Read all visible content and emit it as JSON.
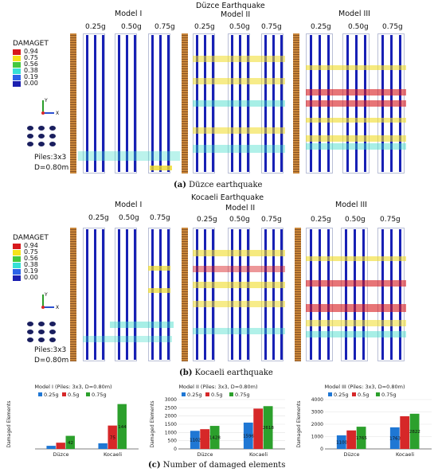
{
  "figA": {
    "title": "Düzce Earthquake",
    "caption_label": "(a)",
    "caption_text": " Düzce earthquake",
    "models": [
      "Model I",
      "Model II",
      "Model III"
    ],
    "pga": [
      "0.25g",
      "0.50g",
      "0.75g"
    ]
  },
  "figB": {
    "title": "Kocaeli Earthquake",
    "caption_label": "(b)",
    "caption_text": " Kocaeli earthquake",
    "models": [
      "Model I",
      "Model II",
      "Model III"
    ],
    "pga": [
      "0.25g",
      "0.50g",
      "0.75g"
    ]
  },
  "legend": {
    "title": "DAMAGET",
    "levels": [
      {
        "value": "0.94",
        "color": "#d7191c"
      },
      {
        "value": "0.75",
        "color": "#f5e31a"
      },
      {
        "value": "0.56",
        "color": "#43c93f"
      },
      {
        "value": "0.38",
        "color": "#36e0d6"
      },
      {
        "value": "0.19",
        "color": "#2c63e8"
      },
      {
        "value": "0.00",
        "color": "#1b1fb0"
      }
    ],
    "piles_label": "Piles:3x3",
    "diameter_label": "D=0.80m"
  },
  "figC": {
    "caption_label": "(c)",
    "caption_text": " Number of damaged elements"
  },
  "chart_data": [
    {
      "type": "bar",
      "title": "Model I (Piles: 3x3, D=0.80m)",
      "ylabel": "Damaged Elements",
      "categories": [
        "Düzce",
        "Kocaeli"
      ],
      "series": [
        {
          "name": "0.25g",
          "color": "#1f77d4",
          "values": [
            10,
            18
          ]
        },
        {
          "name": "0.5g",
          "color": "#d62728",
          "values": [
            20,
            75
          ]
        },
        {
          "name": "0.75g",
          "color": "#2ca02c",
          "values": [
            42,
            144
          ]
        }
      ],
      "labels": [
        [
          "",
          "",
          "42"
        ],
        [
          "",
          "75",
          "144"
        ]
      ],
      "yticks": []
    },
    {
      "type": "bar",
      "title": "Model II (Piles: 3x3, D=0.80m)",
      "ylabel": "Damaged Elements",
      "categories": [
        "Düzce",
        "Kocaeli"
      ],
      "series": [
        {
          "name": "0.25g",
          "color": "#1f77d4",
          "values": [
            1100,
            1600
          ]
        },
        {
          "name": "0.5g",
          "color": "#d62728",
          "values": [
            1200,
            2450
          ]
        },
        {
          "name": "0.75g",
          "color": "#2ca02c",
          "values": [
            1400,
            2600
          ]
        }
      ],
      "labels": [
        [
          "1102",
          "",
          "1428"
        ],
        [
          "1596",
          "",
          "2618"
        ]
      ],
      "yticks": [
        "0",
        "500",
        "1000",
        "1500",
        "2000",
        "2500",
        "3000"
      ],
      "ylim": [
        0,
        3000
      ]
    },
    {
      "type": "bar",
      "title": "Model III (Piles: 3x3, D=0.80m)",
      "ylabel": "Damaged Elements",
      "categories": [
        "Düzce",
        "Kocaeli"
      ],
      "series": [
        {
          "name": "0.25g",
          "color": "#1f77d4",
          "values": [
            1100,
            1750
          ]
        },
        {
          "name": "0.5g",
          "color": "#d62728",
          "values": [
            1500,
            2650
          ]
        },
        {
          "name": "0.75g",
          "color": "#2ca02c",
          "values": [
            1800,
            2850
          ]
        }
      ],
      "labels": [
        [
          "1100",
          "",
          "1765"
        ],
        [
          "1763",
          "",
          "2822"
        ]
      ],
      "yticks": [
        "0",
        "1000",
        "2000",
        "3000",
        "4000"
      ],
      "ylim": [
        0,
        4000
      ]
    }
  ]
}
